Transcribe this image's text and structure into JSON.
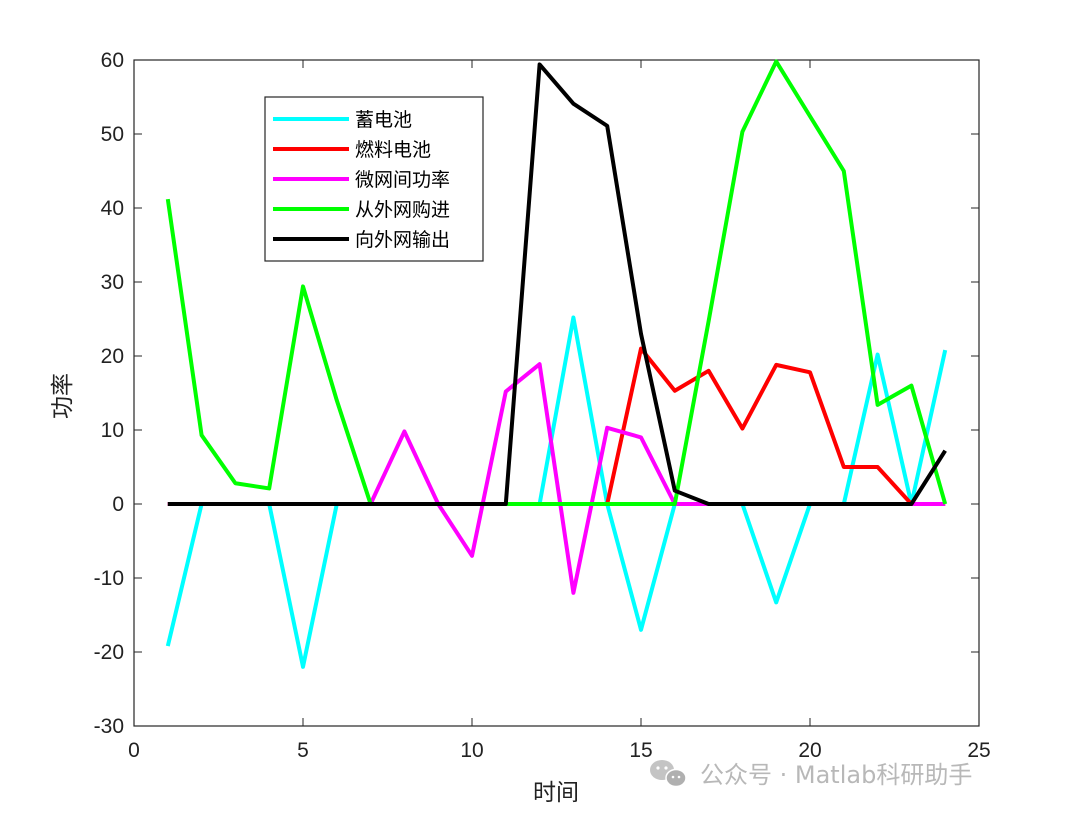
{
  "chart_data": {
    "type": "line",
    "title": "",
    "xlabel": "时间",
    "ylabel": "功率",
    "xlim": [
      0,
      25
    ],
    "ylim": [
      -30,
      60
    ],
    "xticks": [
      0,
      5,
      10,
      15,
      20,
      25
    ],
    "yticks": [
      -30,
      -20,
      -10,
      0,
      10,
      20,
      30,
      40,
      50,
      60
    ],
    "grid": false,
    "legend_position": "top-left-inside",
    "x": [
      1,
      2,
      3,
      4,
      5,
      6,
      7,
      8,
      9,
      10,
      11,
      12,
      13,
      14,
      15,
      16,
      17,
      18,
      19,
      20,
      21,
      22,
      23,
      24
    ],
    "series": [
      {
        "name": "蓄电池",
        "color": "#00ffff",
        "values": [
          -19.2,
          0,
          0,
          0,
          -22,
          0,
          0,
          0,
          0,
          0,
          0,
          0,
          25.2,
          0,
          -17,
          0,
          0,
          0,
          -13.3,
          0,
          0,
          20.2,
          0,
          20.8
        ]
      },
      {
        "name": "燃料电池",
        "color": "#ff0000",
        "values": [
          0,
          0,
          0,
          0,
          0,
          0,
          0,
          0,
          0,
          0,
          0,
          0,
          0,
          0,
          21,
          15.3,
          18,
          10.2,
          18.8,
          17.8,
          5,
          5,
          0,
          0
        ]
      },
      {
        "name": "微网间功率",
        "color": "#ff00ff",
        "values": [
          0,
          0,
          0,
          0,
          0,
          0,
          0,
          9.8,
          0,
          -7,
          15.2,
          18.9,
          -12,
          10.3,
          9,
          0,
          0,
          0,
          0,
          0,
          0,
          0,
          0,
          0
        ]
      },
      {
        "name": "从外网购进",
        "color": "#00ff00",
        "values": [
          41.2,
          9.3,
          2.8,
          2.1,
          29.4,
          14,
          0,
          0,
          0,
          0,
          0,
          0,
          0,
          0,
          0,
          0,
          24.7,
          50.3,
          59.8,
          52.4,
          45,
          13.4,
          16,
          0
        ]
      },
      {
        "name": "向外网输出",
        "color": "#000000",
        "values": [
          0,
          0,
          0,
          0,
          0,
          0,
          0,
          0,
          0,
          0,
          0,
          59.4,
          54.1,
          51.1,
          23,
          1.8,
          0,
          0,
          0,
          0,
          0,
          0,
          0,
          7.2
        ]
      }
    ]
  },
  "watermark": {
    "icon": "wechat-icon",
    "text": "公众号 · Matlab科研助手"
  }
}
